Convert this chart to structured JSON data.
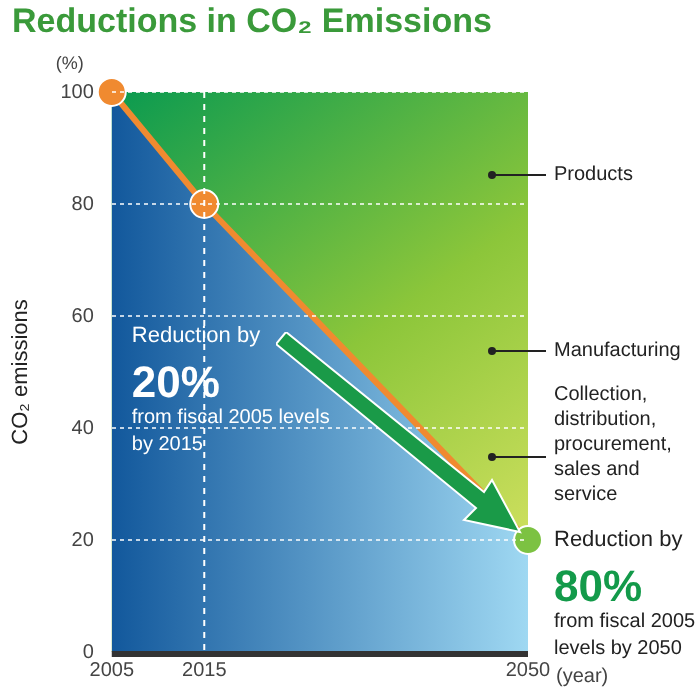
{
  "chart_data": {
    "type": "area",
    "title": "Reductions in CO₂ Emissions",
    "ylabel": "CO₂ emissions",
    "xlabel": "(year)",
    "x": [
      2005,
      2015,
      2050
    ],
    "series": [
      {
        "color": "#f08a30",
        "values": [
          100,
          80,
          20
        ]
      }
    ],
    "colors": [
      "#f08a30",
      "#f08a30",
      "#7cc242"
    ],
    "xlim": [
      2005,
      2050
    ],
    "xticks": [
      2005,
      2015,
      2050
    ],
    "ylim": [
      0,
      100
    ],
    "yticks": [
      0,
      20,
      40,
      60,
      80,
      100
    ],
    "grid": "y",
    "ref_lines": [
      {
        "axis": "x",
        "value": 2015,
        "color": "#ffffff",
        "line_style": "dashed"
      }
    ],
    "legend": false,
    "marker": "circle",
    "annotations": [
      "(%)",
      "Products",
      "Manufacturing",
      "Collection,\ndistribution,\nprocurement,\nsales and\nservice",
      "Reduction by\n20%\nfrom fiscal 2005 levels\nby 2015",
      "Reduction by\n80%\nfrom fiscal 2005\nlevels by 2050"
    ]
  }
}
